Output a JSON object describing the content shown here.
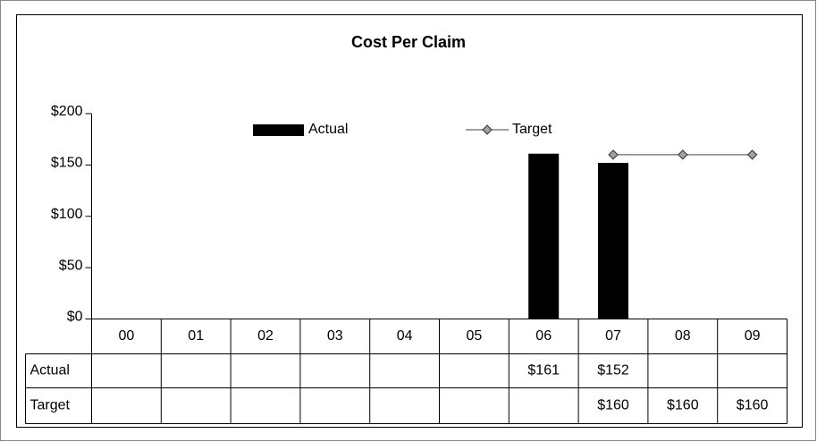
{
  "chart_data": {
    "type": "bar_line_table",
    "title": "Cost Per Claim",
    "categories": [
      "00",
      "01",
      "02",
      "03",
      "04",
      "05",
      "06",
      "07",
      "08",
      "09"
    ],
    "series": [
      {
        "name": "Actual",
        "type": "bar",
        "color": "#000000",
        "values": [
          null,
          null,
          null,
          null,
          null,
          null,
          161,
          152,
          null,
          null
        ],
        "value_labels": [
          null,
          null,
          null,
          null,
          null,
          null,
          "$161",
          "$152",
          null,
          null
        ]
      },
      {
        "name": "Target",
        "type": "line",
        "color": "#808080",
        "marker_color": "#a0a0a0",
        "values": [
          null,
          null,
          null,
          null,
          null,
          null,
          null,
          160,
          160,
          160
        ],
        "value_labels": [
          null,
          null,
          null,
          null,
          null,
          null,
          null,
          "$160",
          "$160",
          "$160"
        ]
      }
    ],
    "ylim": [
      0,
      200
    ],
    "yticks": [
      {
        "value": 0,
        "label": "$0"
      },
      {
        "value": 50,
        "label": "$50"
      },
      {
        "value": 100,
        "label": "$100"
      },
      {
        "value": 150,
        "label": "$150"
      },
      {
        "value": 200,
        "label": "$200"
      }
    ],
    "grid": false,
    "legend": "top"
  }
}
